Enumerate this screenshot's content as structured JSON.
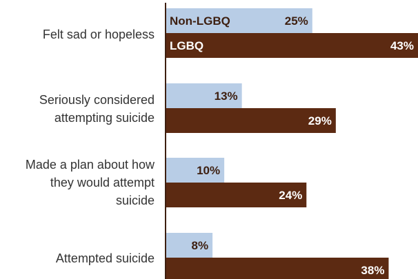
{
  "chart_data": {
    "type": "bar",
    "orientation": "horizontal",
    "categories": [
      "Felt sad or hopeless",
      "Seriously considered attempting suicide",
      "Made a plan about how they would attempt suicide",
      "Attempted suicide"
    ],
    "category_lines": [
      [
        "Felt sad or hopeless"
      ],
      [
        "Seriously considered",
        "attempting suicide"
      ],
      [
        "Made a plan about how",
        "they would attempt",
        "suicide"
      ],
      [
        "Attempted suicide"
      ]
    ],
    "series": [
      {
        "name": "Non-LGBQ",
        "values": [
          25,
          13,
          10,
          8
        ],
        "value_labels": [
          "25%",
          "13%",
          "10%",
          "8%"
        ],
        "color": "#b8cde6",
        "text_color": "#3d1f10"
      },
      {
        "name": "LGBQ",
        "values": [
          43,
          29,
          24,
          38
        ],
        "value_labels": [
          "43%",
          "29%",
          "24%",
          "38%"
        ],
        "color": "#5c2a12",
        "text_color": "#ffffff"
      }
    ],
    "xlim": [
      0,
      43
    ],
    "series_labels_inside_first_group": true,
    "grid": false
  }
}
